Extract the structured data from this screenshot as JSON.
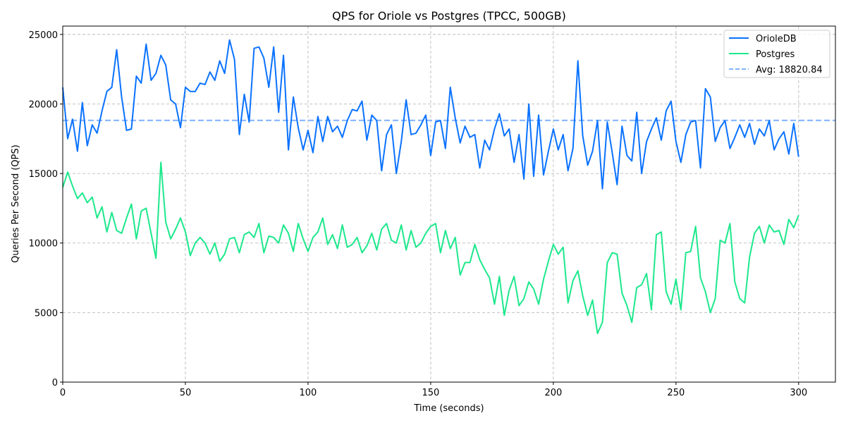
{
  "chart_data": {
    "type": "line",
    "title": "QPS for Oriole vs Postgres (TPCC, 500GB)",
    "xlabel": "Time (seconds)",
    "ylabel": "Queries Per Second (QPS)",
    "xlim": [
      0,
      315
    ],
    "ylim": [
      0,
      25600
    ],
    "xticks": [
      0,
      50,
      100,
      150,
      200,
      250,
      300
    ],
    "yticks": [
      0,
      5000,
      10000,
      15000,
      20000,
      25000
    ],
    "grid": true,
    "legend_placement": "top-right",
    "x": [
      0,
      2,
      4,
      6,
      8,
      10,
      12,
      14,
      16,
      18,
      20,
      22,
      24,
      26,
      28,
      30,
      32,
      34,
      36,
      38,
      40,
      42,
      44,
      46,
      48,
      50,
      52,
      54,
      56,
      58,
      60,
      62,
      64,
      66,
      68,
      70,
      72,
      74,
      76,
      78,
      80,
      82,
      84,
      86,
      88,
      90,
      92,
      94,
      96,
      98,
      100,
      102,
      104,
      106,
      108,
      110,
      112,
      114,
      116,
      118,
      120,
      122,
      124,
      126,
      128,
      130,
      132,
      134,
      136,
      138,
      140,
      142,
      144,
      146,
      148,
      150,
      152,
      154,
      156,
      158,
      160,
      162,
      164,
      166,
      168,
      170,
      172,
      174,
      176,
      178,
      180,
      182,
      184,
      186,
      188,
      190,
      192,
      194,
      196,
      198,
      200,
      202,
      204,
      206,
      208,
      210,
      212,
      214,
      216,
      218,
      220,
      222,
      224,
      226,
      228,
      230,
      232,
      234,
      236,
      238,
      240,
      242,
      244,
      246,
      248,
      250,
      252,
      254,
      256,
      258,
      260,
      262,
      264,
      266,
      268,
      270,
      272,
      274,
      276,
      278,
      280,
      282,
      284,
      286,
      288,
      290,
      292,
      294,
      296,
      298,
      300
    ],
    "series": [
      {
        "name": "OrioleDB",
        "color": "#0a72ff",
        "style": "solid",
        "values": [
          21200,
          17500,
          18900,
          16600,
          20100,
          17000,
          18500,
          17900,
          19500,
          20900,
          21200,
          23900,
          20500,
          18100,
          18200,
          22000,
          21500,
          24300,
          21700,
          22200,
          23500,
          22800,
          20300,
          20000,
          18300,
          21200,
          20900,
          20900,
          21500,
          21400,
          22300,
          21700,
          23100,
          22200,
          24600,
          23200,
          17800,
          20700,
          18700,
          24000,
          24100,
          23300,
          21200,
          24100,
          19400,
          23500,
          16700,
          20500,
          18300,
          16700,
          18100,
          16500,
          19100,
          17300,
          19100,
          18000,
          18400,
          17600,
          18800,
          19600,
          19500,
          20200,
          17400,
          19200,
          18800,
          15200,
          17800,
          18500,
          15000,
          17300,
          20300,
          17800,
          17900,
          18500,
          19200,
          16300,
          18700,
          18800,
          16800,
          21200,
          19000,
          17200,
          18400,
          17600,
          17800,
          15400,
          17400,
          16700,
          18200,
          19300,
          17700,
          18200,
          15800,
          17800,
          14600,
          20000,
          14800,
          19200,
          14900,
          16600,
          18200,
          16700,
          17800,
          15200,
          16800,
          23100,
          17700,
          15600,
          16600,
          18800,
          13900,
          18700,
          16500,
          14200,
          18400,
          16300,
          15900,
          19400,
          15000,
          17300,
          18200,
          19000,
          17400,
          19500,
          20200,
          17300,
          15800,
          17800,
          18700,
          18800,
          15400,
          21100,
          20500,
          17300,
          18300,
          18800,
          16800,
          17600,
          18500,
          17600,
          18600,
          17100,
          18200,
          17700,
          18800,
          16700,
          17500,
          18000,
          16400,
          18600,
          16200
        ]
      },
      {
        "name": "Postgres",
        "color": "#1de88c",
        "style": "solid",
        "values": [
          14000,
          15100,
          14100,
          13200,
          13600,
          12900,
          13300,
          11800,
          12600,
          10800,
          12200,
          10900,
          10700,
          11800,
          12800,
          10300,
          12300,
          12500,
          10700,
          8900,
          15800,
          11500,
          10300,
          11000,
          11800,
          10800,
          9100,
          10000,
          10400,
          10000,
          9200,
          10000,
          8700,
          9200,
          10300,
          10400,
          9300,
          10600,
          10800,
          10400,
          11400,
          9300,
          10500,
          10400,
          10000,
          11300,
          10700,
          9400,
          11400,
          10300,
          9400,
          10400,
          10800,
          11800,
          9900,
          10600,
          9600,
          11300,
          9700,
          9900,
          10400,
          9300,
          9800,
          10700,
          9500,
          11000,
          11400,
          10200,
          10000,
          11300,
          9500,
          10900,
          9700,
          10000,
          10700,
          11200,
          11400,
          9300,
          10900,
          9600,
          10400,
          7700,
          8600,
          8600,
          9900,
          8800,
          8100,
          7500,
          5600,
          7600,
          4800,
          6600,
          7600,
          5500,
          6000,
          7200,
          6700,
          5600,
          7400,
          8700,
          9900,
          9200,
          9700,
          5700,
          7300,
          8000,
          6200,
          4800,
          5900,
          3500,
          4300,
          8600,
          9300,
          9200,
          6400,
          5500,
          4300,
          6800,
          7000,
          7800,
          5200,
          10600,
          10800,
          6500,
          5600,
          7400,
          5200,
          9300,
          9400,
          11200,
          7500,
          6500,
          5000,
          6000,
          10200,
          10000,
          11400,
          7200,
          6000,
          5700,
          9000,
          10700,
          11200,
          10000,
          11300,
          10800,
          10900,
          9900,
          11700,
          11100,
          12000
        ]
      }
    ],
    "average": {
      "label": "Avg: 18820.84",
      "value": 18820.84,
      "color": "#7fb2ff",
      "style": "dashed"
    }
  }
}
